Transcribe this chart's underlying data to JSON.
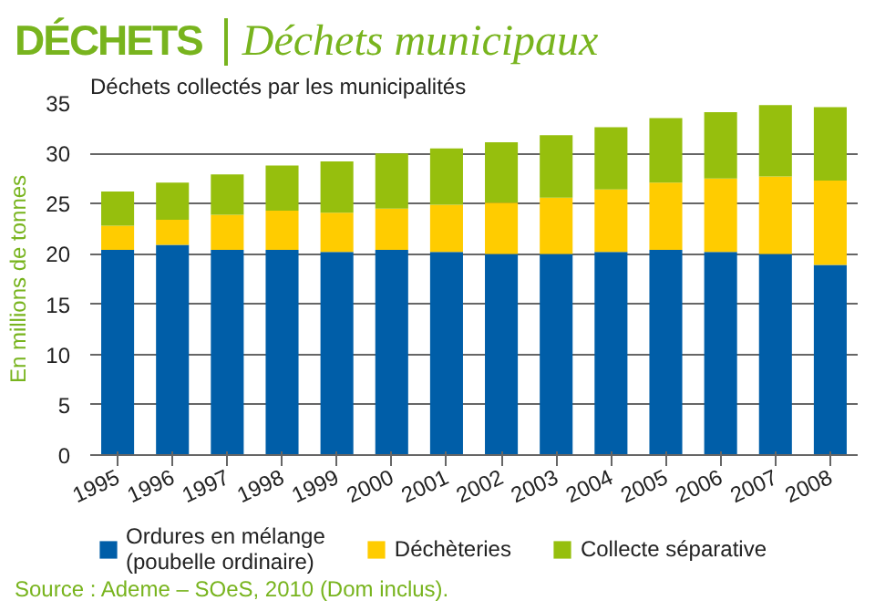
{
  "chart_data": {
    "type": "bar",
    "stacked": true,
    "title": "DÉCHETS",
    "subtitle": "Déchets municipaux",
    "annotations": [
      "Déchets collectés par les municipalités",
      "Source : Ademe – SOeS, 2010 (Dom inclus)."
    ],
    "ylabel": "En millions de tonnes",
    "categories": [
      "1995",
      "1996",
      "1997",
      "1998",
      "1999",
      "2000",
      "2001",
      "2002",
      "2003",
      "2004",
      "2005",
      "2006",
      "2007",
      "2008"
    ],
    "series": [
      {
        "name": "Ordures en mélange (poubelle ordinaire)",
        "color": "#005ea8",
        "values": [
          20.4,
          20.9,
          20.4,
          20.4,
          20.2,
          20.4,
          20.2,
          20.0,
          20.0,
          20.2,
          20.4,
          20.2,
          20.0,
          18.9
        ]
      },
      {
        "name": "Déchèteries",
        "color": "#ffcc00",
        "values": [
          2.4,
          2.5,
          3.5,
          3.9,
          3.9,
          4.1,
          4.7,
          5.1,
          5.6,
          6.2,
          6.7,
          7.3,
          7.7,
          8.4
        ]
      },
      {
        "name": "Collecte séparative",
        "color": "#96bf0d",
        "values": [
          3.4,
          3.7,
          4.0,
          4.5,
          5.1,
          5.5,
          5.6,
          6.0,
          6.2,
          6.2,
          6.4,
          6.6,
          7.1,
          7.3
        ]
      }
    ],
    "ylim": [
      0,
      35
    ],
    "yticks": [
      0,
      5,
      10,
      15,
      20,
      25,
      30,
      35
    ],
    "grid": "y",
    "legend": "bottom"
  }
}
